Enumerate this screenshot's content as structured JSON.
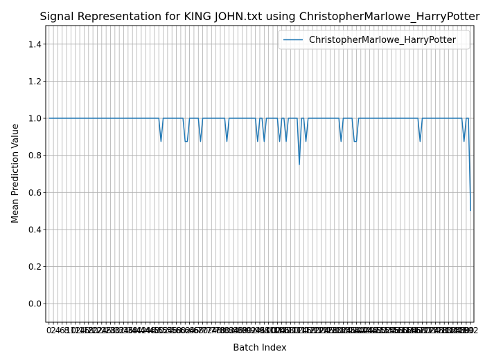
{
  "chart_data": {
    "type": "line",
    "title": "Signal Representation for KING JOHN.txt using ChristopherMarlowe_HarryPotter",
    "xlabel": "Batch Index",
    "ylabel": "Mean Prediction Value",
    "ylim": [
      -0.1,
      1.5
    ],
    "xlim": [
      -1.5,
      193.5
    ],
    "grid": true,
    "legend": "top-right",
    "yticks": [
      0.0,
      0.2,
      0.4,
      0.6,
      0.8,
      1.0,
      1.2,
      1.4
    ],
    "ytick_labels": [
      "0.0",
      "0.2",
      "0.4",
      "0.6",
      "0.8",
      "1.0",
      "1.2",
      "1.4"
    ],
    "x_tick_spacing": 2,
    "series": [
      {
        "name": "ChristopherMarlowe_HarryPotter",
        "color": "#1f77b4",
        "baseline": 1.0,
        "n_points": 193,
        "dips": [
          [
            51,
            0.875
          ],
          [
            62,
            0.875
          ],
          [
            63,
            0.875
          ],
          [
            69,
            0.875
          ],
          [
            81,
            0.875
          ],
          [
            95,
            0.875
          ],
          [
            98,
            0.875
          ],
          [
            105,
            0.875
          ],
          [
            108,
            0.875
          ],
          [
            114,
            0.75
          ],
          [
            117,
            0.875
          ],
          [
            133,
            0.875
          ],
          [
            139,
            0.875
          ],
          [
            140,
            0.875
          ],
          [
            169,
            0.875
          ],
          [
            189,
            0.875
          ],
          [
            192,
            0.5
          ]
        ]
      }
    ]
  }
}
